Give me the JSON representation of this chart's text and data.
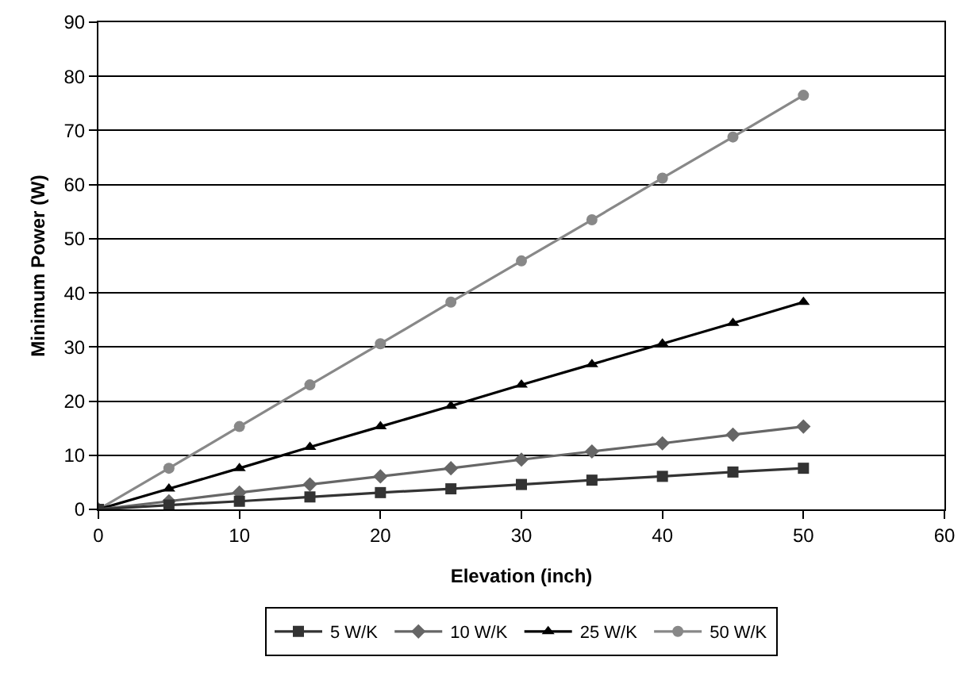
{
  "chart_data": {
    "type": "line",
    "xlabel": "Elevation (inch)",
    "ylabel": "Minimum Power (W)",
    "x": [
      0,
      5,
      10,
      15,
      20,
      25,
      30,
      35,
      40,
      45,
      50
    ],
    "series": [
      {
        "name": "5 W/K",
        "color": "#333333",
        "marker": "square",
        "values": [
          0,
          0.8,
          1.5,
          2.3,
          3.1,
          3.8,
          4.6,
          5.4,
          6.1,
          6.9,
          7.6
        ]
      },
      {
        "name": "10 W/K",
        "color": "#666666",
        "marker": "diamond",
        "values": [
          0,
          1.5,
          3.1,
          4.6,
          6.1,
          7.6,
          9.2,
          10.7,
          12.2,
          13.8,
          15.3
        ]
      },
      {
        "name": "25 W/K",
        "color": "#000000",
        "marker": "triangle",
        "values": [
          0,
          3.8,
          7.6,
          11.5,
          15.3,
          19.1,
          23,
          26.8,
          30.6,
          34.4,
          38.3
        ]
      },
      {
        "name": "50 W/K",
        "color": "#888888",
        "marker": "circle",
        "values": [
          0,
          7.6,
          15.3,
          23,
          30.6,
          38.3,
          45.9,
          53.5,
          61.2,
          68.8,
          76.5
        ]
      }
    ],
    "xlim": [
      0,
      60
    ],
    "xticks": [
      0,
      10,
      20,
      30,
      40,
      50,
      60
    ],
    "ylim": [
      0,
      90
    ],
    "yticks": [
      0,
      10,
      20,
      30,
      40,
      50,
      60,
      70,
      80,
      90
    ],
    "grid": "y",
    "legend": "bottom",
    "line_style": "solid"
  }
}
